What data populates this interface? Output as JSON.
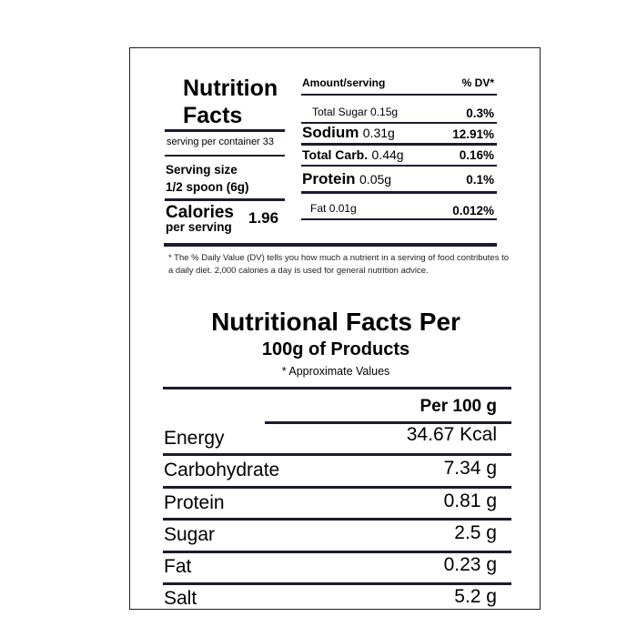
{
  "label": {
    "title_line1": "Nutrition",
    "title_line2": "Facts",
    "serving_per_container": "serving per container 33",
    "serving_size_label": "Serving size",
    "serving_size_value": "1/2 spoon (6g)",
    "calories_label": "Calories",
    "calories_sub": "per serving",
    "calories_value": "1.96",
    "amount_header": "Amount/serving",
    "dv_header": "% DV*",
    "rows": [
      {
        "name": "Total Sugar",
        "amount": "0.15g",
        "dv": "0.3%"
      },
      {
        "name": "Sodium",
        "amount": "0.31g",
        "dv": "12.91%"
      },
      {
        "name": "Total Carb.",
        "amount": "0.44g",
        "dv": "0.16%"
      },
      {
        "name": "Protein",
        "amount": "0.05g",
        "dv": "0.1%"
      },
      {
        "name": "Fat",
        "amount": "0.01g",
        "dv": "0.012%"
      }
    ],
    "footnote": "* The % Daily Value (DV) tells you how much a nutrient in a serving of food contributes to a daily diet. 2,000 calories a day is used for general nutrition advice."
  },
  "per100": {
    "title_line1": "Nutritional Facts Per",
    "title_line2": "100g of Products",
    "subtitle": "* Approximate Values",
    "column_header": "Per 100 g",
    "rows": [
      {
        "name": "Energy",
        "value": "34.67 Kcal"
      },
      {
        "name": "Carbohydrate",
        "value": "7.34 g"
      },
      {
        "name": "Protein",
        "value": "0.81 g"
      },
      {
        "name": "Sugar",
        "value": "2.5 g"
      },
      {
        "name": "Fat",
        "value": "0.23 g"
      },
      {
        "name": "Salt",
        "value": "5.2 g"
      }
    ]
  }
}
